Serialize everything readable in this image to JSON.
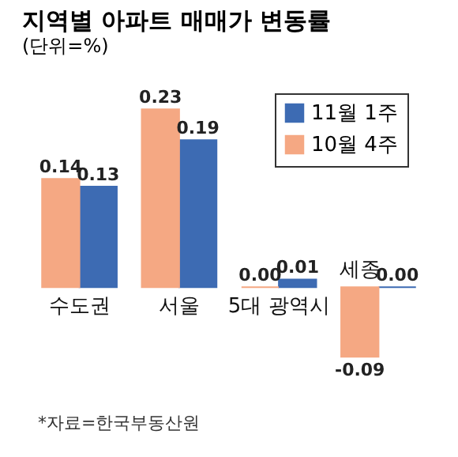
{
  "chart_data": {
    "type": "bar",
    "title": "지역별 아파트 매매가 변동률",
    "subtitle": "(단위=%)",
    "categories": [
      "수도권",
      "서울",
      "5대 광역시",
      "세종"
    ],
    "series": [
      {
        "name": "11월 1주",
        "color": "#3d6bb3",
        "values": [
          0.13,
          0.19,
          0.01,
          0.0
        ],
        "value_labels": [
          "0.13",
          "0.19",
          "0.01",
          "0.00"
        ]
      },
      {
        "name": "10월 4주",
        "color": "#f5a883",
        "values": [
          0.14,
          0.23,
          0.0,
          -0.09
        ],
        "value_labels": [
          "0.14",
          "0.23",
          "0.00",
          "-0.09"
        ]
      }
    ],
    "legend": "top right",
    "annotations": [
      "*자료=한국부동산원"
    ]
  }
}
